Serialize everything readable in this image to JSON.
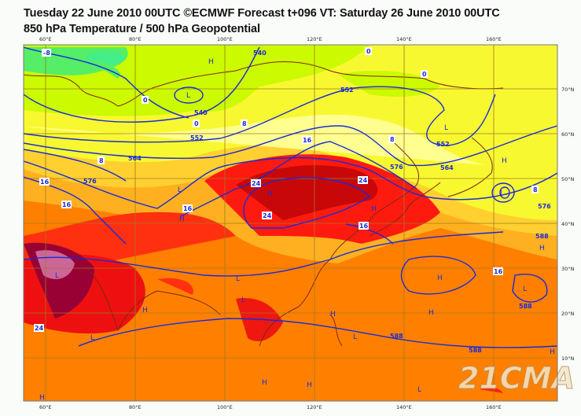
{
  "header": {
    "title_line1": "Tuesday 22 June 2010 00UTC ©ECMWF Forecast t+096 VT: Saturday 26 June 2010 00UTC",
    "title_line2": "850 hPa Temperature / 500 hPa Geopotential"
  },
  "axes": {
    "lon_labels": [
      "60°E",
      "80°E",
      "100°E",
      "120°E",
      "140°E",
      "160°E"
    ],
    "lat_labels": [
      "70°N",
      "60°N",
      "50°N",
      "40°N",
      "30°N",
      "20°N",
      "10°N"
    ]
  },
  "geopotential_labels": [
    "540",
    "552",
    "564",
    "576",
    "552",
    "552",
    "564",
    "576",
    "576",
    "588",
    "588",
    "588",
    "588",
    "540"
  ],
  "temperature_labels": [
    "-8",
    "0",
    "0",
    "8",
    "8",
    "16",
    "16",
    "24",
    "24",
    "24",
    "16",
    "16",
    "16",
    "24",
    "0",
    "0",
    "8",
    "8",
    "16"
  ],
  "pressure_centres": [
    "L",
    "H",
    "L",
    "H",
    "L",
    "H",
    "L",
    "H",
    "H",
    "L",
    "L",
    "H",
    "H",
    "H",
    "L",
    "L",
    "H",
    "H",
    "L",
    "H",
    "H",
    "L",
    "H",
    "L",
    "H"
  ],
  "watermark": "21CMA",
  "colors": {
    "contour": "#1a2ad8",
    "coast": "#7a2a10",
    "grid": "#a07820"
  }
}
